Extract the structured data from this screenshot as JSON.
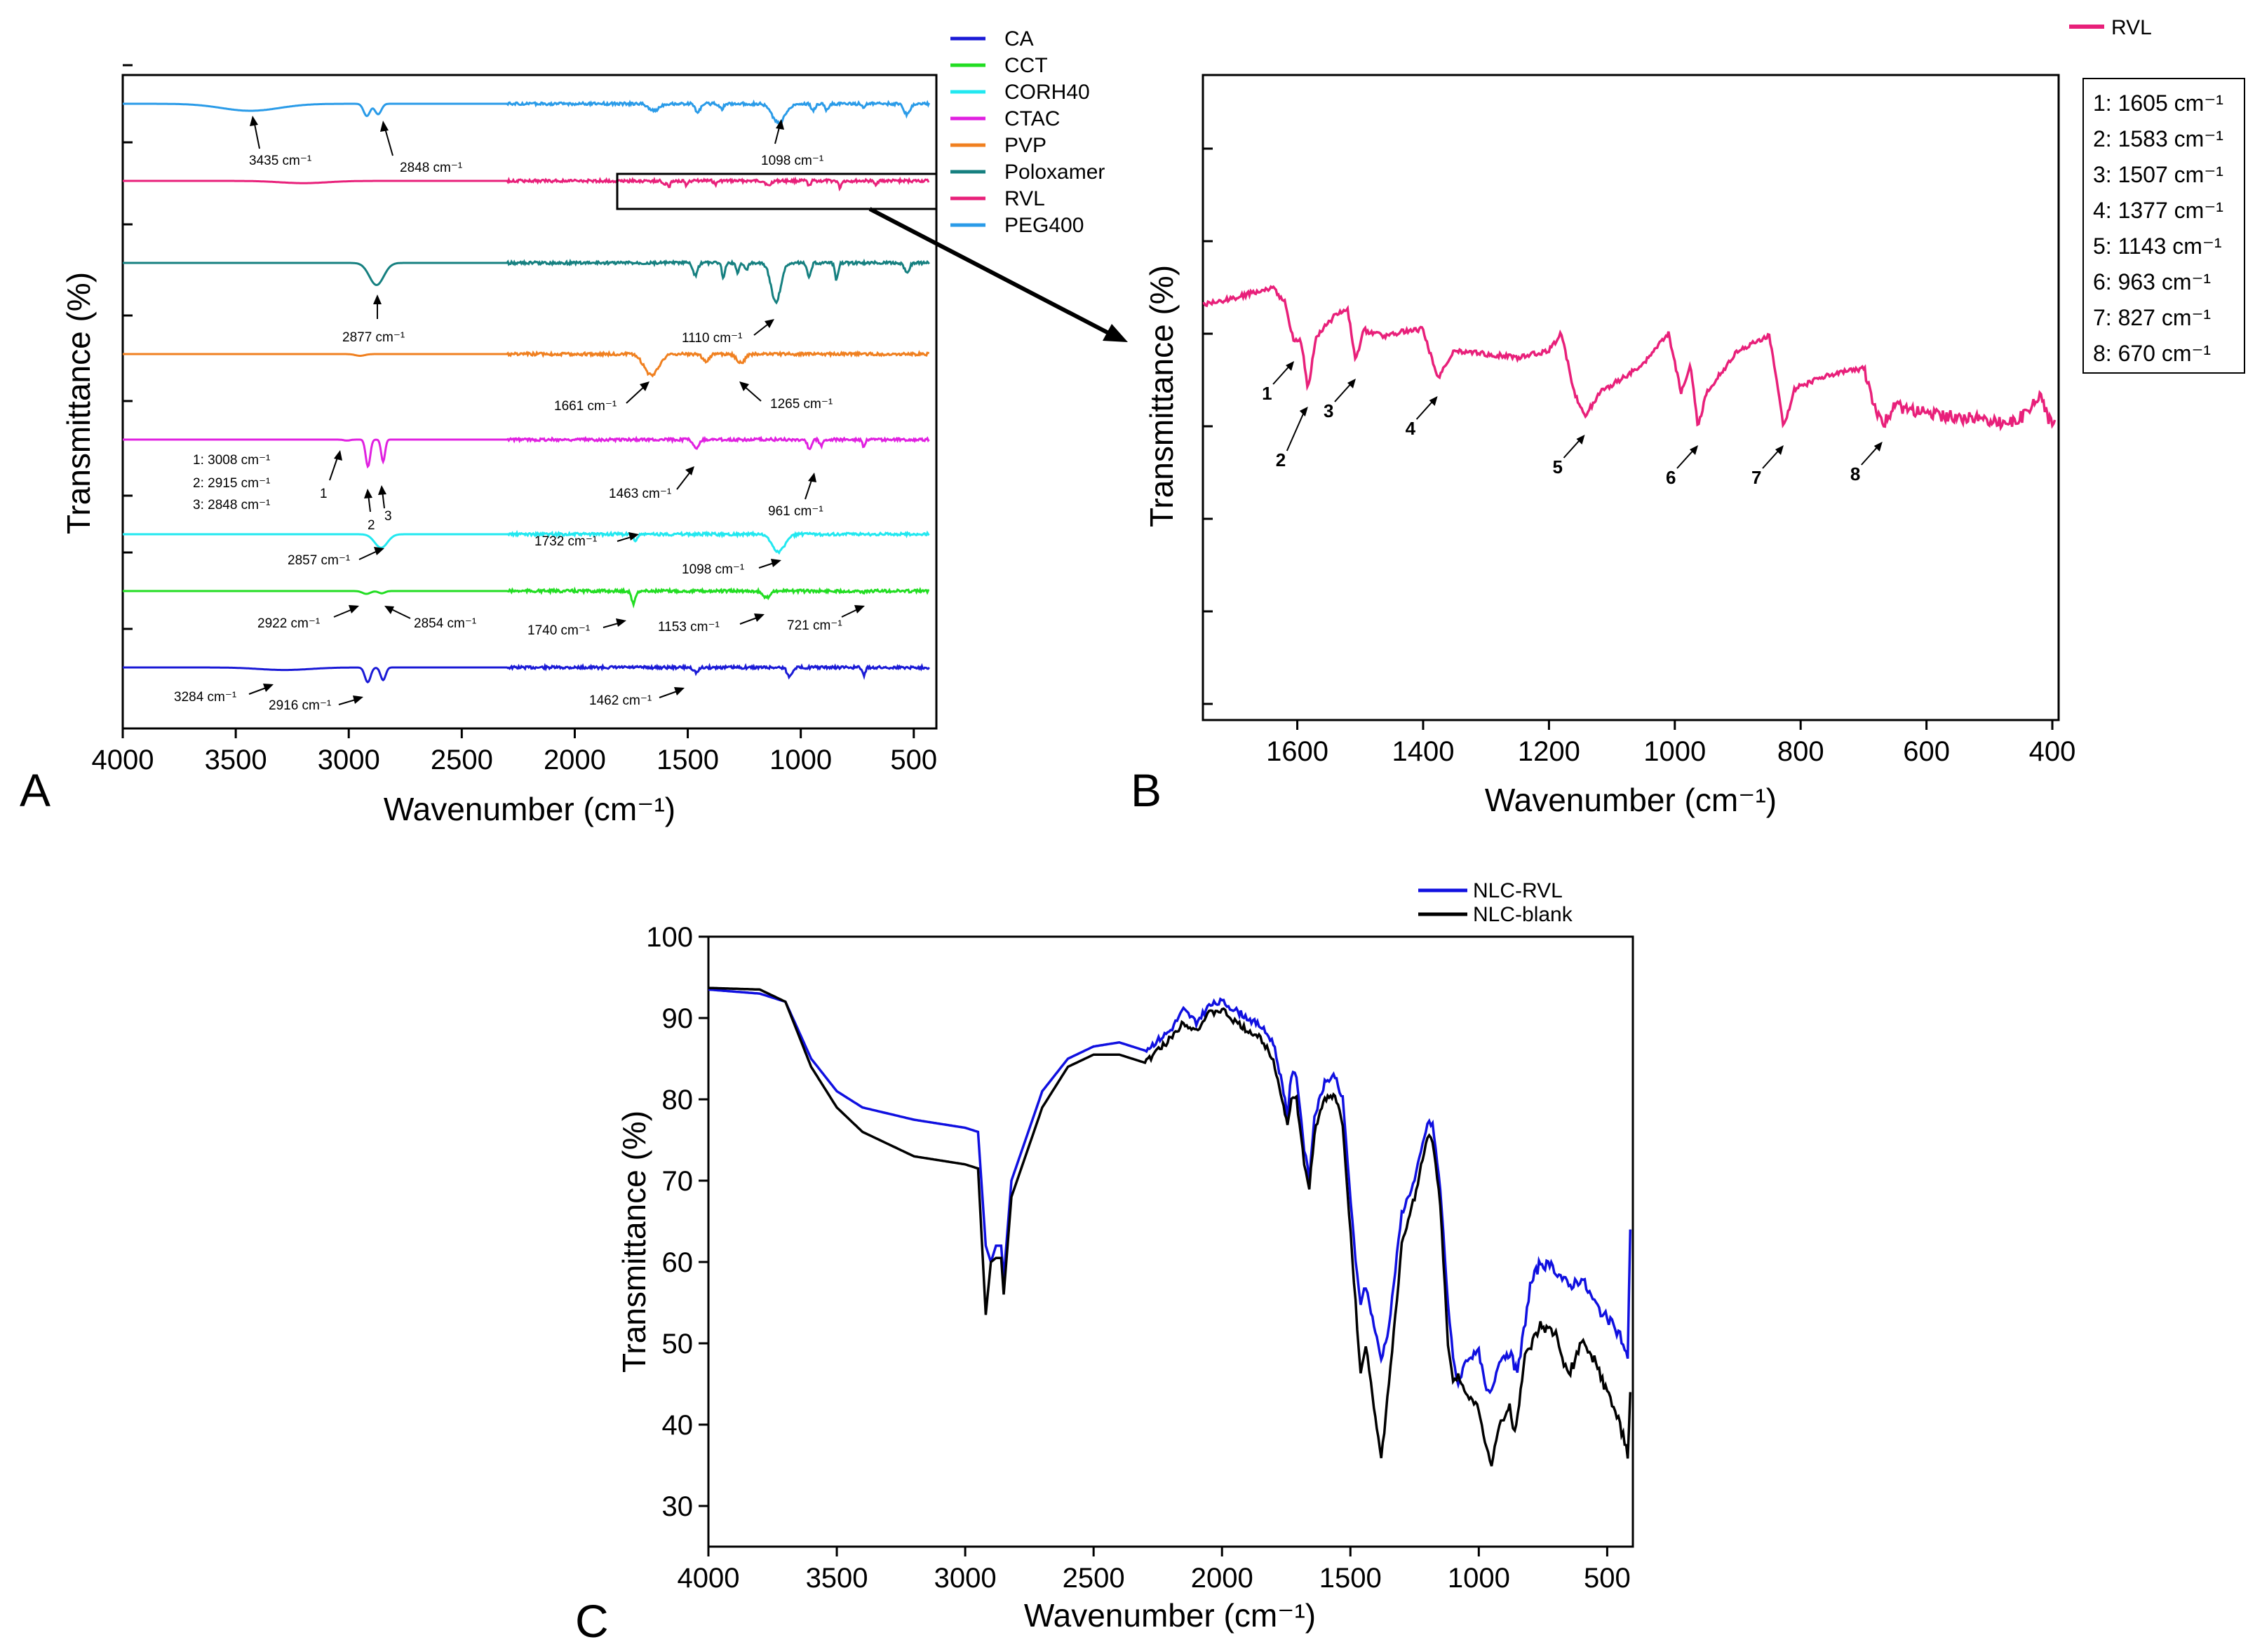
{
  "chart_data": [
    {
      "panel": "A",
      "type": "line",
      "xlabel": "Wavenumber (cm⁻¹)",
      "ylabel": "Transmittance (%)",
      "xlim": [
        4000,
        400
      ],
      "xticks": [
        4000,
        3500,
        3000,
        2500,
        2000,
        1500,
        1000,
        500
      ],
      "legend_position": "top-right outside",
      "series": [
        {
          "name": "CA",
          "color": "#1a1ad6",
          "baseline": 0.5,
          "dips": [
            [
              3284,
              0.06,
              160
            ],
            [
              2916,
              0.35,
              18
            ],
            [
              2848,
              0.3,
              16
            ],
            [
              1462,
              0.12,
              15
            ],
            [
              1050,
              0.22,
              15
            ],
            [
              721,
              0.18,
              10
            ]
          ]
        },
        {
          "name": "CCT",
          "color": "#22dd22",
          "baseline": 0.4,
          "dips": [
            [
              2922,
              0.1,
              25
            ],
            [
              2854,
              0.08,
              20
            ],
            [
              1740,
              0.45,
              12
            ],
            [
              1153,
              0.25,
              20
            ],
            [
              721,
              0.05,
              10
            ]
          ]
        },
        {
          "name": "CORH40",
          "color": "#22e8f0",
          "baseline": 0.45,
          "dips": [
            [
              2857,
              0.35,
              40
            ],
            [
              1732,
              0.15,
              15
            ],
            [
              1098,
              0.45,
              40
            ]
          ]
        },
        {
          "name": "CTAC",
          "color": "#e020e0",
          "baseline": 0.4,
          "dips": [
            [
              3008,
              0.02,
              20
            ],
            [
              2915,
              0.55,
              14
            ],
            [
              2848,
              0.45,
              12
            ],
            [
              1463,
              0.2,
              15
            ],
            [
              961,
              0.22,
              12
            ],
            [
              910,
              0.12,
              10
            ],
            [
              721,
              0.15,
              8
            ]
          ]
        },
        {
          "name": "PVP",
          "color": "#f08020",
          "baseline": 0.2,
          "dips": [
            [
              2950,
              0.05,
              30
            ],
            [
              1661,
              0.6,
              45
            ],
            [
              1420,
              0.2,
              20
            ],
            [
              1265,
              0.25,
              25
            ]
          ]
        },
        {
          "name": "Poloxamer",
          "color": "#168080",
          "baseline": 0.45,
          "dips": [
            [
              2877,
              0.45,
              45
            ],
            [
              1467,
              0.25,
              15
            ],
            [
              1342,
              0.3,
              10
            ],
            [
              1280,
              0.2,
              10
            ],
            [
              1240,
              0.15,
              10
            ],
            [
              1110,
              0.8,
              30
            ],
            [
              963,
              0.3,
              12
            ],
            [
              842,
              0.35,
              10
            ],
            [
              530,
              0.2,
              15
            ]
          ]
        },
        {
          "name": "RVL",
          "color": "#e8207a",
          "baseline": 0.5,
          "dips": [
            [
              3200,
              0.08,
              150
            ],
            [
              1605,
              0.15,
              10
            ],
            [
              1583,
              0.2,
              8
            ],
            [
              1507,
              0.15,
              8
            ],
            [
              1377,
              0.12,
              10
            ],
            [
              1143,
              0.18,
              15
            ],
            [
              963,
              0.2,
              8
            ],
            [
              827,
              0.25,
              8
            ],
            [
              670,
              0.12,
              10
            ]
          ]
        },
        {
          "name": "PEG400",
          "color": "#2a9be8",
          "baseline": 0.2,
          "dips": [
            [
              3435,
              0.2,
              180
            ],
            [
              2920,
              0.35,
              20
            ],
            [
              2870,
              0.3,
              20
            ],
            [
              1650,
              0.2,
              30
            ],
            [
              1456,
              0.25,
              15
            ],
            [
              1350,
              0.15,
              12
            ],
            [
              1098,
              0.55,
              40
            ],
            [
              945,
              0.2,
              12
            ],
            [
              885,
              0.18,
              12
            ],
            [
              720,
              0.1,
              10
            ],
            [
              530,
              0.3,
              20
            ]
          ]
        }
      ],
      "annotations": [
        "3435 cm⁻¹",
        "2848 cm⁻¹",
        "1098 cm⁻¹",
        "2877 cm⁻¹",
        "1110 cm⁻¹",
        "1661 cm⁻¹",
        "1265 cm⁻¹",
        "1: 3008 cm⁻¹",
        "2: 2915 cm⁻¹",
        "3: 2848 cm⁻¹",
        "1",
        "2",
        "3",
        "1463 cm⁻¹",
        "961 cm⁻¹",
        "2857 cm⁻¹",
        "1732 cm⁻¹",
        "1098 cm⁻¹",
        "2922 cm⁻¹",
        "2854 cm⁻¹",
        "1740 cm⁻¹",
        "1153 cm⁻¹",
        "721 cm⁻¹",
        "3284 cm⁻¹",
        "2916 cm⁻¹",
        "1462 cm⁻¹"
      ]
    },
    {
      "panel": "B",
      "type": "line",
      "xlabel": "Wavenumber (cm⁻¹)",
      "ylabel": "Transmittance (%)",
      "xlim": [
        1750,
        390
      ],
      "xticks": [
        1600,
        1400,
        1200,
        1000,
        800,
        600,
        400
      ],
      "legend": "RVL",
      "series": [
        {
          "name": "RVL",
          "color": "#e8207a"
        }
      ],
      "peaks": [
        {
          "label": "1",
          "wavenumber": 1605,
          "text": "1: 1605 cm⁻¹"
        },
        {
          "label": "2",
          "wavenumber": 1583,
          "text": "2: 1583 cm⁻¹"
        },
        {
          "label": "3",
          "wavenumber": 1507,
          "text": "3: 1507 cm⁻¹"
        },
        {
          "label": "4",
          "wavenumber": 1377,
          "text": "4: 1377 cm⁻¹"
        },
        {
          "label": "5",
          "wavenumber": 1143,
          "text": "5: 1143 cm⁻¹"
        },
        {
          "label": "6",
          "wavenumber": 963,
          "text": "6: 963 cm⁻¹"
        },
        {
          "label": "7",
          "wavenumber": 827,
          "text": "7: 827 cm⁻¹"
        },
        {
          "label": "8",
          "wavenumber": 670,
          "text": "8: 670 cm⁻¹"
        }
      ]
    },
    {
      "panel": "C",
      "type": "line",
      "xlabel": "Wavenumber (cm⁻¹)",
      "ylabel": "Transmittance (%)",
      "xlim": [
        4000,
        400
      ],
      "ylim": [
        25,
        100
      ],
      "xticks": [
        4000,
        3500,
        3000,
        2500,
        2000,
        1500,
        1000,
        500
      ],
      "yticks": [
        30,
        40,
        50,
        60,
        70,
        80,
        90,
        100
      ],
      "legend_position": "top-right outside",
      "series": [
        {
          "name": "NLC-RVL",
          "color": "#1010e0",
          "points": [
            [
              4000,
              93.5
            ],
            [
              3800,
              93
            ],
            [
              3700,
              92
            ],
            [
              3600,
              85
            ],
            [
              3500,
              81
            ],
            [
              3400,
              79
            ],
            [
              3200,
              77.5
            ],
            [
              3000,
              76.5
            ],
            [
              2950,
              76
            ],
            [
              2920,
              62
            ],
            [
              2900,
              60
            ],
            [
              2880,
              62
            ],
            [
              2860,
              62
            ],
            [
              2850,
              58
            ],
            [
              2820,
              70
            ],
            [
              2700,
              81
            ],
            [
              2600,
              85
            ],
            [
              2500,
              86.5
            ],
            [
              2400,
              87
            ],
            [
              2300,
              86
            ],
            [
              2200,
              88.5
            ],
            [
              2150,
              91
            ],
            [
              2100,
              89.5
            ],
            [
              2050,
              91.5
            ],
            [
              2000,
              92
            ],
            [
              1950,
              91
            ],
            [
              1850,
              89
            ],
            [
              1800,
              87
            ],
            [
              1760,
              81
            ],
            [
              1745,
              78
            ],
            [
              1730,
              83
            ],
            [
              1710,
              83
            ],
            [
              1680,
              74
            ],
            [
              1660,
              70
            ],
            [
              1640,
              78
            ],
            [
              1600,
              82
            ],
            [
              1560,
              83
            ],
            [
              1530,
              80
            ],
            [
              1480,
              60
            ],
            [
              1460,
              55
            ],
            [
              1440,
              57
            ],
            [
              1420,
              54
            ],
            [
              1380,
              48
            ],
            [
              1350,
              52
            ],
            [
              1300,
              66
            ],
            [
              1250,
              70
            ],
            [
              1200,
              77
            ],
            [
              1180,
              77
            ],
            [
              1150,
              69
            ],
            [
              1120,
              55
            ],
            [
              1100,
              48
            ],
            [
              1080,
              45
            ],
            [
              1050,
              48
            ],
            [
              1000,
              49
            ],
            [
              970,
              44
            ],
            [
              950,
              44
            ],
            [
              920,
              48
            ],
            [
              880,
              49
            ],
            [
              850,
              46
            ],
            [
              800,
              57
            ],
            [
              760,
              60
            ],
            [
              700,
              59
            ],
            [
              650,
              57
            ],
            [
              600,
              58
            ],
            [
              550,
              55
            ],
            [
              500,
              53
            ],
            [
              450,
              51
            ],
            [
              420,
              48
            ],
            [
              410,
              64
            ]
          ]
        },
        {
          "name": "NLC-blank",
          "color": "#000000",
          "points": [
            [
              4000,
              93.7
            ],
            [
              3800,
              93.5
            ],
            [
              3700,
              92
            ],
            [
              3600,
              84
            ],
            [
              3500,
              79
            ],
            [
              3400,
              76
            ],
            [
              3200,
              73
            ],
            [
              3000,
              72
            ],
            [
              2950,
              71.5
            ],
            [
              2920,
              53.5
            ],
            [
              2900,
              60
            ],
            [
              2880,
              60.5
            ],
            [
              2860,
              60.5
            ],
            [
              2850,
              56
            ],
            [
              2820,
              68
            ],
            [
              2700,
              79
            ],
            [
              2600,
              84
            ],
            [
              2500,
              85.5
            ],
            [
              2400,
              85.5
            ],
            [
              2300,
              84.5
            ],
            [
              2200,
              87.5
            ],
            [
              2150,
              89.5
            ],
            [
              2100,
              88.5
            ],
            [
              2050,
              90.5
            ],
            [
              2000,
              91
            ],
            [
              1950,
              89.5
            ],
            [
              1850,
              87.5
            ],
            [
              1800,
              85
            ],
            [
              1760,
              79
            ],
            [
              1745,
              77
            ],
            [
              1730,
              80
            ],
            [
              1710,
              80
            ],
            [
              1680,
              72
            ],
            [
              1660,
              69
            ],
            [
              1640,
              76
            ],
            [
              1600,
              80
            ],
            [
              1560,
              80.5
            ],
            [
              1530,
              77
            ],
            [
              1480,
              55
            ],
            [
              1460,
              46
            ],
            [
              1440,
              50
            ],
            [
              1420,
              45
            ],
            [
              1380,
              35.5
            ],
            [
              1350,
              45
            ],
            [
              1300,
              62
            ],
            [
              1250,
              68
            ],
            [
              1200,
              75.5
            ],
            [
              1180,
              75
            ],
            [
              1150,
              67
            ],
            [
              1120,
              50
            ],
            [
              1100,
              45
            ],
            [
              1080,
              46
            ],
            [
              1050,
              44
            ],
            [
              1000,
              42
            ],
            [
              970,
              37
            ],
            [
              950,
              35
            ],
            [
              920,
              40
            ],
            [
              880,
              42
            ],
            [
              860,
              39
            ],
            [
              820,
              48
            ],
            [
              760,
              52
            ],
            [
              700,
              51
            ],
            [
              650,
              46
            ],
            [
              600,
              50
            ],
            [
              550,
              48
            ],
            [
              500,
              44
            ],
            [
              450,
              40
            ],
            [
              420,
              36
            ],
            [
              410,
              44
            ]
          ]
        }
      ]
    }
  ],
  "panel_labels": {
    "a": "A",
    "b": "B",
    "c": "C"
  },
  "legend_b_title": "RVL"
}
